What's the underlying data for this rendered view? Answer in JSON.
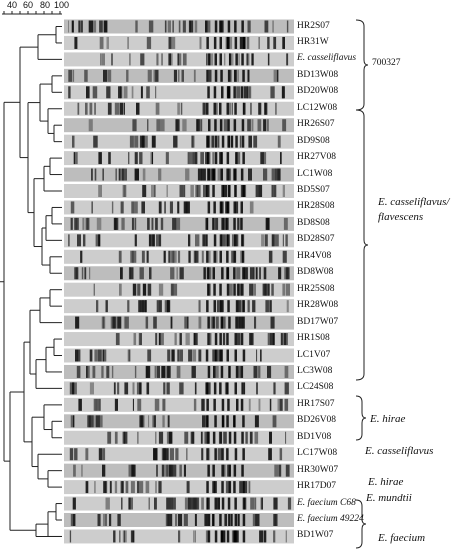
{
  "scale": {
    "ticks": [
      "40",
      "60",
      "80",
      "100"
    ]
  },
  "samples": [
    {
      "label": "HR2S07",
      "italic": false
    },
    {
      "label": "HR31W",
      "italic": false
    },
    {
      "label": "E. casseliflavus",
      "italic": true
    },
    {
      "label": "BD13W08",
      "italic": false
    },
    {
      "label": "BD20W08",
      "italic": false
    },
    {
      "label": "LC12W08",
      "italic": false
    },
    {
      "label": "HR26S07",
      "italic": false
    },
    {
      "label": "BD9S08",
      "italic": false
    },
    {
      "label": "HR27V08",
      "italic": false
    },
    {
      "label": "LC1W08",
      "italic": false
    },
    {
      "label": "BD5S07",
      "italic": false
    },
    {
      "label": "HR28S08",
      "italic": false
    },
    {
      "label": "BD8S08",
      "italic": false
    },
    {
      "label": "BD28S07",
      "italic": false
    },
    {
      "label": "HR4V08",
      "italic": false
    },
    {
      "label": "BD8W08",
      "italic": false
    },
    {
      "label": "HR25S08",
      "italic": false
    },
    {
      "label": "HR28W08",
      "italic": false
    },
    {
      "label": "BD17W07",
      "italic": false
    },
    {
      "label": "HR1S08",
      "italic": false
    },
    {
      "label": "LC1V07",
      "italic": false
    },
    {
      "label": "LC3W08",
      "italic": false
    },
    {
      "label": "LC24S08",
      "italic": false
    },
    {
      "label": "HR17S07",
      "italic": false
    },
    {
      "label": "BD26V08",
      "italic": false
    },
    {
      "label": "BD1V08",
      "italic": false
    },
    {
      "label": "LC17W08",
      "italic": false
    },
    {
      "label": "HR30W07",
      "italic": false
    },
    {
      "label": "HR17D07",
      "italic": false
    },
    {
      "label": "E. faecium C68",
      "italic": true
    },
    {
      "label": "E. faecium 49224",
      "italic": true
    },
    {
      "label": "BD1W07",
      "italic": false
    }
  ],
  "groups": {
    "g700327": "700327",
    "casseliflavus_flavescens_1": "E. casseliflavus/",
    "casseliflavus_flavescens_2": "flavescens",
    "hirae_1": "E. hirae",
    "casseliflavus_2": "E. casseliflavus",
    "hirae_2": "E. hirae",
    "mundtii": "E. mundtii",
    "faecium": "E. faecium"
  },
  "colors": {
    "line": "#222222",
    "gel_bg": "#c8c8c8",
    "band": "#1a1a1a"
  }
}
